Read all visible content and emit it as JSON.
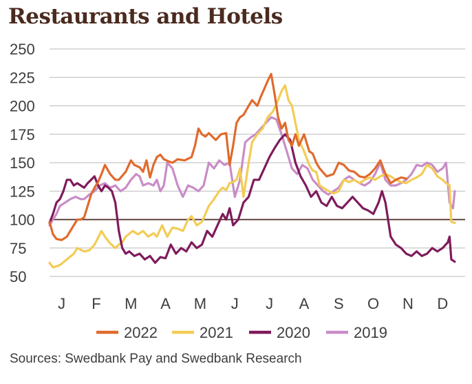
{
  "chart_data": {
    "type": "line",
    "title": "Restaurants and Hotels",
    "source": "Sources: Swedbank Pay and Swedbank Research",
    "ylim": [
      50,
      250
    ],
    "yticks": [
      "250",
      "225",
      "200",
      "175",
      "150",
      "125",
      "100",
      "75",
      "50"
    ],
    "ytick_values": [
      250,
      225,
      200,
      175,
      150,
      125,
      100,
      75,
      50
    ],
    "x_range": [
      0,
      12
    ],
    "xticks": [
      "J",
      "F",
      "M",
      "A",
      "M",
      "J",
      "J",
      "A",
      "S",
      "O",
      "N",
      "D"
    ],
    "reference_line": 100,
    "grid": true,
    "legend_position": "bottom",
    "series": [
      {
        "name": "2022",
        "color": "#e06a2c",
        "x": [
          0.0,
          0.1,
          0.2,
          0.35,
          0.5,
          0.6,
          0.8,
          0.9,
          1.0,
          1.1,
          1.2,
          1.3,
          1.4,
          1.5,
          1.6,
          1.75,
          1.9,
          2.0,
          2.2,
          2.35,
          2.45,
          2.6,
          2.7,
          2.8,
          2.9,
          3.0,
          3.1,
          3.2,
          3.3,
          3.45,
          3.55,
          3.7,
          3.9,
          4.1,
          4.2,
          4.3,
          4.4,
          4.5,
          4.6,
          4.8,
          4.95,
          5.1,
          5.2,
          5.3,
          5.4,
          5.5,
          5.6,
          5.75,
          5.85,
          6.0,
          6.1,
          6.2,
          6.3,
          6.4,
          6.5,
          6.6,
          6.7,
          6.8,
          6.9,
          7.0,
          7.1,
          7.2,
          7.35,
          7.5,
          7.6,
          7.7,
          7.8,
          8.0,
          8.2,
          8.35,
          8.5,
          8.65,
          8.8,
          8.95,
          9.1,
          9.25,
          9.4,
          9.55,
          9.7,
          9.85,
          10.0,
          10.15,
          10.3
        ],
        "y": [
          98,
          87,
          83,
          82,
          85,
          90,
          100,
          100,
          102,
          112,
          122,
          128,
          133,
          140,
          148,
          140,
          135,
          135,
          142,
          152,
          148,
          146,
          142,
          152,
          137,
          148,
          155,
          157,
          153,
          151,
          150,
          153,
          152,
          155,
          165,
          180,
          175,
          173,
          176,
          170,
          175,
          176,
          148,
          165,
          185,
          190,
          192,
          200,
          205,
          200,
          208,
          215,
          222,
          228,
          210,
          190,
          180,
          185,
          170,
          165,
          175,
          165,
          175,
          160,
          158,
          150,
          145,
          138,
          140,
          150,
          148,
          143,
          142,
          138,
          137,
          140,
          145,
          152,
          140,
          132,
          135,
          137,
          136
        ]
      },
      {
        "name": "2021",
        "color": "#f2cc55",
        "x": [
          0.0,
          0.1,
          0.3,
          0.5,
          0.7,
          0.8,
          1.0,
          1.15,
          1.3,
          1.4,
          1.5,
          1.6,
          1.75,
          1.9,
          2.0,
          2.1,
          2.2,
          2.4,
          2.55,
          2.7,
          2.85,
          3.0,
          3.1,
          3.25,
          3.4,
          3.55,
          3.7,
          3.85,
          4.0,
          4.1,
          4.25,
          4.4,
          4.5,
          4.6,
          4.75,
          4.9,
          5.0,
          5.1,
          5.2,
          5.3,
          5.4,
          5.5,
          5.6,
          5.75,
          5.85,
          6.0,
          6.15,
          6.3,
          6.45,
          6.6,
          6.7,
          6.8,
          6.9,
          7.0,
          7.1,
          7.2,
          7.35,
          7.5,
          7.6,
          7.7,
          7.8,
          8.0,
          8.2,
          8.35,
          8.5,
          8.65,
          8.8,
          8.95,
          9.1,
          9.25,
          9.4,
          9.55,
          9.7,
          9.85,
          10.0,
          10.15,
          10.3,
          10.45,
          10.6,
          10.75,
          10.9,
          11.05,
          11.2,
          11.35,
          11.45,
          11.55,
          11.6,
          11.7
        ],
        "y": [
          62,
          58,
          60,
          65,
          70,
          75,
          72,
          73,
          78,
          84,
          90,
          85,
          79,
          75,
          78,
          80,
          85,
          90,
          87,
          90,
          85,
          88,
          85,
          95,
          85,
          93,
          92,
          90,
          100,
          103,
          95,
          98,
          105,
          112,
          118,
          125,
          128,
          126,
          132,
          133,
          135,
          145,
          120,
          150,
          168,
          175,
          180,
          190,
          195,
          205,
          213,
          218,
          205,
          200,
          185,
          170,
          160,
          148,
          143,
          142,
          130,
          126,
          123,
          125,
          135,
          133,
          135,
          132,
          135,
          137,
          135,
          138,
          140,
          138,
          135,
          133,
          132,
          135,
          137,
          140,
          148,
          145,
          138,
          135,
          132,
          130,
          98,
          97
        ]
      },
      {
        "name": "2020",
        "color": "#7e1b5b",
        "x": [
          0.0,
          0.1,
          0.2,
          0.3,
          0.4,
          0.5,
          0.6,
          0.7,
          0.8,
          0.9,
          1.0,
          1.1,
          1.2,
          1.3,
          1.4,
          1.5,
          1.6,
          1.7,
          1.8,
          1.9,
          2.0,
          2.1,
          2.2,
          2.3,
          2.45,
          2.6,
          2.75,
          2.9,
          3.05,
          3.2,
          3.35,
          3.5,
          3.65,
          3.8,
          3.95,
          4.1,
          4.25,
          4.4,
          4.55,
          4.7,
          4.85,
          5.0,
          5.1,
          5.2,
          5.3,
          5.45,
          5.6,
          5.75,
          5.9,
          6.05,
          6.2,
          6.35,
          6.5,
          6.65,
          6.8,
          6.95,
          7.1,
          7.25,
          7.4,
          7.55,
          7.7,
          7.85,
          8.0,
          8.15,
          8.3,
          8.45,
          8.6,
          8.75,
          8.9,
          9.05,
          9.2,
          9.35,
          9.5,
          9.6,
          9.7,
          9.85,
          10.0,
          10.15,
          10.3,
          10.45,
          10.6,
          10.75,
          10.9,
          11.05,
          11.2,
          11.35,
          11.5,
          11.55,
          11.6,
          11.7
        ],
        "y": [
          97,
          105,
          115,
          118,
          125,
          135,
          135,
          130,
          132,
          130,
          128,
          132,
          135,
          138,
          130,
          125,
          130,
          128,
          125,
          115,
          90,
          75,
          70,
          72,
          68,
          70,
          65,
          68,
          62,
          67,
          66,
          78,
          70,
          75,
          72,
          80,
          75,
          78,
          90,
          85,
          95,
          105,
          100,
          110,
          95,
          100,
          115,
          120,
          135,
          135,
          145,
          155,
          163,
          170,
          175,
          170,
          150,
          138,
          130,
          120,
          125,
          115,
          112,
          120,
          112,
          110,
          115,
          120,
          115,
          110,
          108,
          105,
          115,
          125,
          115,
          85,
          78,
          75,
          70,
          68,
          72,
          68,
          70,
          75,
          72,
          75,
          80,
          85,
          65,
          63
        ]
      },
      {
        "name": "2019",
        "color": "#c98cc7",
        "x": [
          0.0,
          0.1,
          0.2,
          0.3,
          0.45,
          0.6,
          0.75,
          0.9,
          1.0,
          1.15,
          1.3,
          1.45,
          1.6,
          1.75,
          1.9,
          2.05,
          2.2,
          2.35,
          2.5,
          2.6,
          2.7,
          2.85,
          3.0,
          3.1,
          3.2,
          3.3,
          3.4,
          3.55,
          3.7,
          3.85,
          4.0,
          4.15,
          4.3,
          4.45,
          4.6,
          4.75,
          4.9,
          5.05,
          5.2,
          5.35,
          5.5,
          5.65,
          5.8,
          5.95,
          6.1,
          6.25,
          6.4,
          6.55,
          6.7,
          6.85,
          7.0,
          7.15,
          7.3,
          7.45,
          7.6,
          7.75,
          7.9,
          8.05,
          8.2,
          8.35,
          8.5,
          8.65,
          8.8,
          8.95,
          9.1,
          9.25,
          9.4,
          9.55,
          9.7,
          9.85,
          10.0,
          10.15,
          10.3,
          10.45,
          10.6,
          10.75,
          10.9,
          11.05,
          11.2,
          11.35,
          11.45,
          11.55,
          11.65,
          11.7
        ],
        "y": [
          95,
          100,
          105,
          112,
          115,
          118,
          120,
          118,
          118,
          122,
          125,
          130,
          132,
          128,
          130,
          125,
          128,
          135,
          140,
          138,
          130,
          132,
          130,
          135,
          125,
          130,
          150,
          145,
          130,
          120,
          130,
          128,
          125,
          130,
          150,
          145,
          152,
          148,
          150,
          120,
          135,
          168,
          172,
          175,
          180,
          185,
          190,
          188,
          175,
          160,
          145,
          140,
          148,
          145,
          135,
          130,
          125,
          122,
          125,
          128,
          135,
          138,
          135,
          132,
          130,
          133,
          140,
          150,
          135,
          130,
          130,
          132,
          135,
          140,
          148,
          147,
          150,
          148,
          142,
          145,
          150,
          115,
          110,
          125
        ]
      }
    ]
  }
}
